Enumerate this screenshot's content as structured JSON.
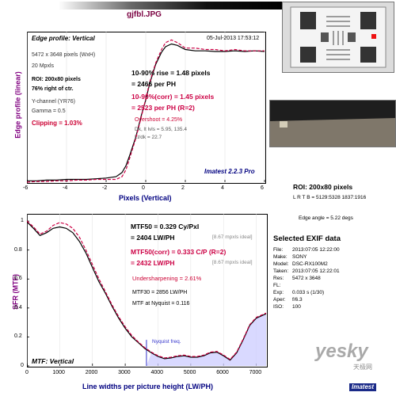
{
  "header": {
    "filename": "gjfbl.JPG"
  },
  "edge": {
    "title": "Edge profile: Vertical",
    "date": "05-Jul-2013 17:53:12",
    "size": "5472 x 3648 pixels (WxH)",
    "mpxl": "20 Mpxls",
    "roi": "ROI: 200x80 pixels",
    "right": "76% right of ctr.",
    "ychannel": "Y-channel  (YR76)",
    "gamma": "Gamma = 0.5",
    "clipping": "Clipping =  1.03%",
    "rise1": "10-90% rise = 1.48 pixels",
    "rise2": "= 2466 per PH",
    "corr1": "10-90%(corr) = 1.45 pixels",
    "corr2": "= 2523 per PH  (R=2)",
    "overshoot": "Overshoot = 4.25%",
    "dk": "Dk, lt lvls = 5.95, 135.4",
    "ltdk": "Lt/dk = 22.7",
    "imatest": "Imatest 2.2.3 Pro",
    "ylabel": "Edge profile (linear)",
    "xlabel": "Pixels (Vertical)"
  },
  "mtf": {
    "title": "MTF: Vertical",
    "mtf50": "MTF50 = 0.329 Cy/Pxl",
    "lwph": "= 2404 LW/PH",
    "ideal1": "[8.67 mpxls ideal]",
    "mtf50corr": "MTF50(corr) = 0.333 C/P  (R=2)",
    "lwph2": "= 2432 LW/PH",
    "ideal2": "[8.67 mpxls ideal]",
    "under": "Undersharpening = 2.61%",
    "mtf30": "MTF30 = 2856 LW/PH",
    "nyq": "MTF at Nyquist = 0.116",
    "nyqlabel": "Nyquist freq.",
    "ylabel": "SFR (MTF)",
    "xlabel": "Line widths per picture height (LW/PH)"
  },
  "right": {
    "roi": "ROI: 200x80 pixels",
    "lrtb": "L R T B = 5129:5328  1837:1916",
    "edgeangle": "Edge angle = 5.22 degs"
  },
  "exif": {
    "title": "Selected EXIF data",
    "rows": [
      {
        "k": "File:",
        "v": "2013:07:05 12:22:00"
      },
      {
        "k": "Make:",
        "v": "SONY"
      },
      {
        "k": "Model:",
        "v": "DSC-RX100M2"
      },
      {
        "k": "Taken:",
        "v": "2013:07:05 12:22:01"
      },
      {
        "k": "Res:",
        "v": "5472 x 3648"
      },
      {
        "k": "FL:",
        "v": ""
      },
      {
        "k": "Exp:",
        "v": "0.033 s  (1/30)"
      },
      {
        "k": "Aper:",
        "v": "f/6.3"
      },
      {
        "k": "ISO:",
        "v": "100"
      }
    ]
  },
  "watermark": {
    "brand": "yesky",
    "sub": "天极网",
    "logo": "Imatest"
  },
  "chart_data": [
    {
      "type": "line",
      "title": "Edge profile: Vertical",
      "xlabel": "Pixels (Vertical)",
      "ylabel": "Edge profile (linear)",
      "xlim": [
        -6,
        6
      ],
      "ylim": [
        0,
        1.1
      ],
      "x_ticks": [
        -6,
        -4,
        -2,
        0,
        2,
        4,
        6
      ],
      "colors": {
        "measured": "#000000",
        "corrected": "#cc0044"
      },
      "x": [
        -6,
        -5.5,
        -5,
        -4.5,
        -4,
        -3.5,
        -3,
        -2.5,
        -2,
        -1.5,
        -1.2,
        -1,
        -0.8,
        -0.5,
        -0.2,
        0,
        0.2,
        0.5,
        0.8,
        1,
        1.3,
        1.6,
        2,
        2.5,
        3,
        3.5,
        4,
        4.5,
        5,
        5.5,
        6
      ],
      "measured": [
        0.01,
        0.01,
        0.015,
        0.015,
        0.02,
        0.02,
        0.02,
        0.025,
        0.03,
        0.04,
        0.07,
        0.12,
        0.2,
        0.33,
        0.5,
        0.6,
        0.72,
        0.86,
        0.95,
        0.99,
        1.01,
        1.0,
        0.97,
        0.96,
        0.96,
        0.955,
        0.955,
        0.96,
        0.955,
        0.96,
        0.955
      ],
      "corrected": [
        0.0,
        0.005,
        0.005,
        0.01,
        0.01,
        0.015,
        0.015,
        0.02,
        0.02,
        0.02,
        0.04,
        0.09,
        0.18,
        0.32,
        0.49,
        0.61,
        0.73,
        0.87,
        0.97,
        1.02,
        1.04,
        1.02,
        0.98,
        0.98,
        0.97,
        0.97,
        0.96,
        0.97,
        0.96,
        0.96,
        0.96
      ]
    },
    {
      "type": "line",
      "title": "MTF: Vertical",
      "xlabel": "Line widths per picture height (LW/PH)",
      "ylabel": "SFR (MTF)",
      "xlim": [
        0,
        7300
      ],
      "ylim": [
        0,
        1.05
      ],
      "x_ticks": [
        0,
        1000,
        2000,
        3000,
        4000,
        5000,
        6000,
        7000
      ],
      "y_ticks": [
        0,
        0.2,
        0.4,
        0.6,
        0.8,
        1
      ],
      "nyquist": 3648,
      "colors": {
        "measured": "#000000",
        "corrected": "#cc0044",
        "nyquist": "#3333cc"
      },
      "x": [
        0,
        200,
        400,
        600,
        800,
        1000,
        1200,
        1400,
        1600,
        1800,
        2000,
        2200,
        2400,
        2600,
        2800,
        3000,
        3200,
        3400,
        3600,
        3800,
        4000,
        4200,
        4400,
        4600,
        4800,
        5000,
        5200,
        5400,
        5600,
        5800,
        6000,
        6200,
        6400,
        6600,
        6800,
        7000,
        7300
      ],
      "measured": [
        0.995,
        0.95,
        0.9,
        0.92,
        0.95,
        0.96,
        0.95,
        0.92,
        0.86,
        0.78,
        0.68,
        0.58,
        0.5,
        0.41,
        0.33,
        0.26,
        0.2,
        0.16,
        0.12,
        0.09,
        0.065,
        0.05,
        0.055,
        0.065,
        0.07,
        0.06,
        0.06,
        0.07,
        0.09,
        0.095,
        0.07,
        0.04,
        0.09,
        0.18,
        0.28,
        0.33,
        0.36
      ],
      "corrected": [
        1.0,
        0.96,
        0.91,
        0.93,
        0.97,
        0.99,
        0.98,
        0.95,
        0.89,
        0.8,
        0.7,
        0.6,
        0.51,
        0.42,
        0.34,
        0.27,
        0.21,
        0.165,
        0.125,
        0.095,
        0.07,
        0.055,
        0.06,
        0.07,
        0.075,
        0.065,
        0.065,
        0.075,
        0.095,
        0.1,
        0.075,
        0.045,
        0.095,
        0.185,
        0.285,
        0.335,
        0.365
      ]
    }
  ]
}
